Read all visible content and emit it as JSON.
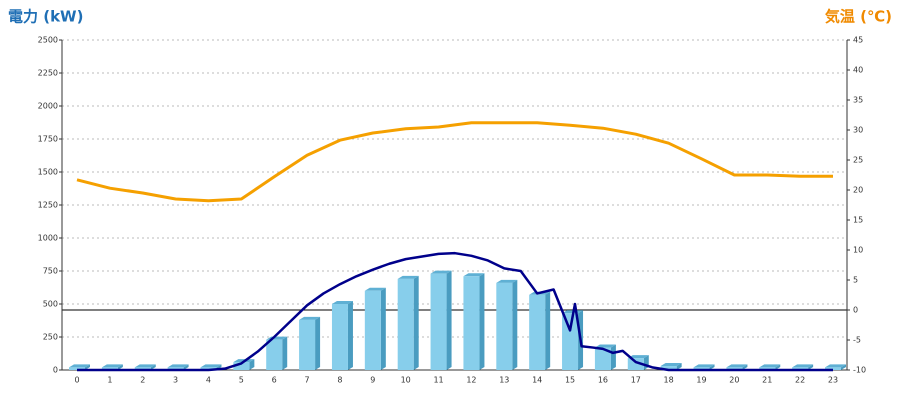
{
  "chart_data": {
    "type": "bar",
    "y_title": "電力 (kW)",
    "y2_title": "気温 (℃)",
    "categories": [
      "0",
      "1",
      "2",
      "3",
      "4",
      "5",
      "6",
      "7",
      "8",
      "9",
      "10",
      "11",
      "12",
      "13",
      "14",
      "15",
      "16",
      "17",
      "18",
      "19",
      "20",
      "21",
      "22",
      "23"
    ],
    "ylim": [
      0,
      2500
    ],
    "yticks": [
      0,
      250,
      500,
      750,
      1000,
      1250,
      1500,
      1750,
      2000,
      2250,
      2500
    ],
    "y2lim": [
      -10,
      45
    ],
    "y2ticks": [
      -10,
      -5,
      0,
      5,
      10,
      15,
      20,
      25,
      30,
      35,
      40,
      45
    ],
    "grid": true,
    "series": [
      {
        "type": "bar",
        "color": "#87ceeb",
        "values": [
          20,
          20,
          20,
          20,
          20,
          60,
          230,
          380,
          500,
          600,
          690,
          730,
          710,
          660,
          570,
          430,
          170,
          90,
          30,
          20,
          20,
          20,
          20,
          20
        ]
      },
      {
        "type": "line",
        "color": "#00008b",
        "x": [
          0,
          1,
          2,
          3,
          4,
          4.5,
          5,
          5.5,
          6,
          6.5,
          7,
          7.5,
          8,
          8.5,
          9,
          9.5,
          10,
          10.5,
          11,
          11.5,
          12,
          12.5,
          13,
          13.5,
          14,
          14.5,
          15,
          15.15,
          15.35,
          15.7,
          16,
          16.3,
          16.6,
          17,
          17.5,
          18,
          19,
          20,
          21,
          22,
          23
        ],
        "values": [
          0,
          0,
          0,
          0,
          0,
          10,
          50,
          140,
          250,
          370,
          490,
          580,
          650,
          710,
          760,
          805,
          840,
          860,
          880,
          885,
          865,
          830,
          770,
          750,
          580,
          610,
          300,
          500,
          180,
          170,
          160,
          130,
          145,
          60,
          20,
          0,
          0,
          0,
          0,
          0,
          0
        ]
      },
      {
        "type": "line",
        "axis": "y2",
        "color": "#f5a000",
        "values": [
          21.7,
          20.3,
          19.5,
          18.5,
          18.2,
          18.5,
          22.2,
          25.8,
          28.3,
          29.5,
          30.2,
          30.5,
          31.2,
          31.2,
          31.2,
          30.8,
          30.3,
          29.3,
          27.8,
          25.2,
          22.5,
          22.5,
          22.3,
          22.3
        ]
      }
    ]
  }
}
